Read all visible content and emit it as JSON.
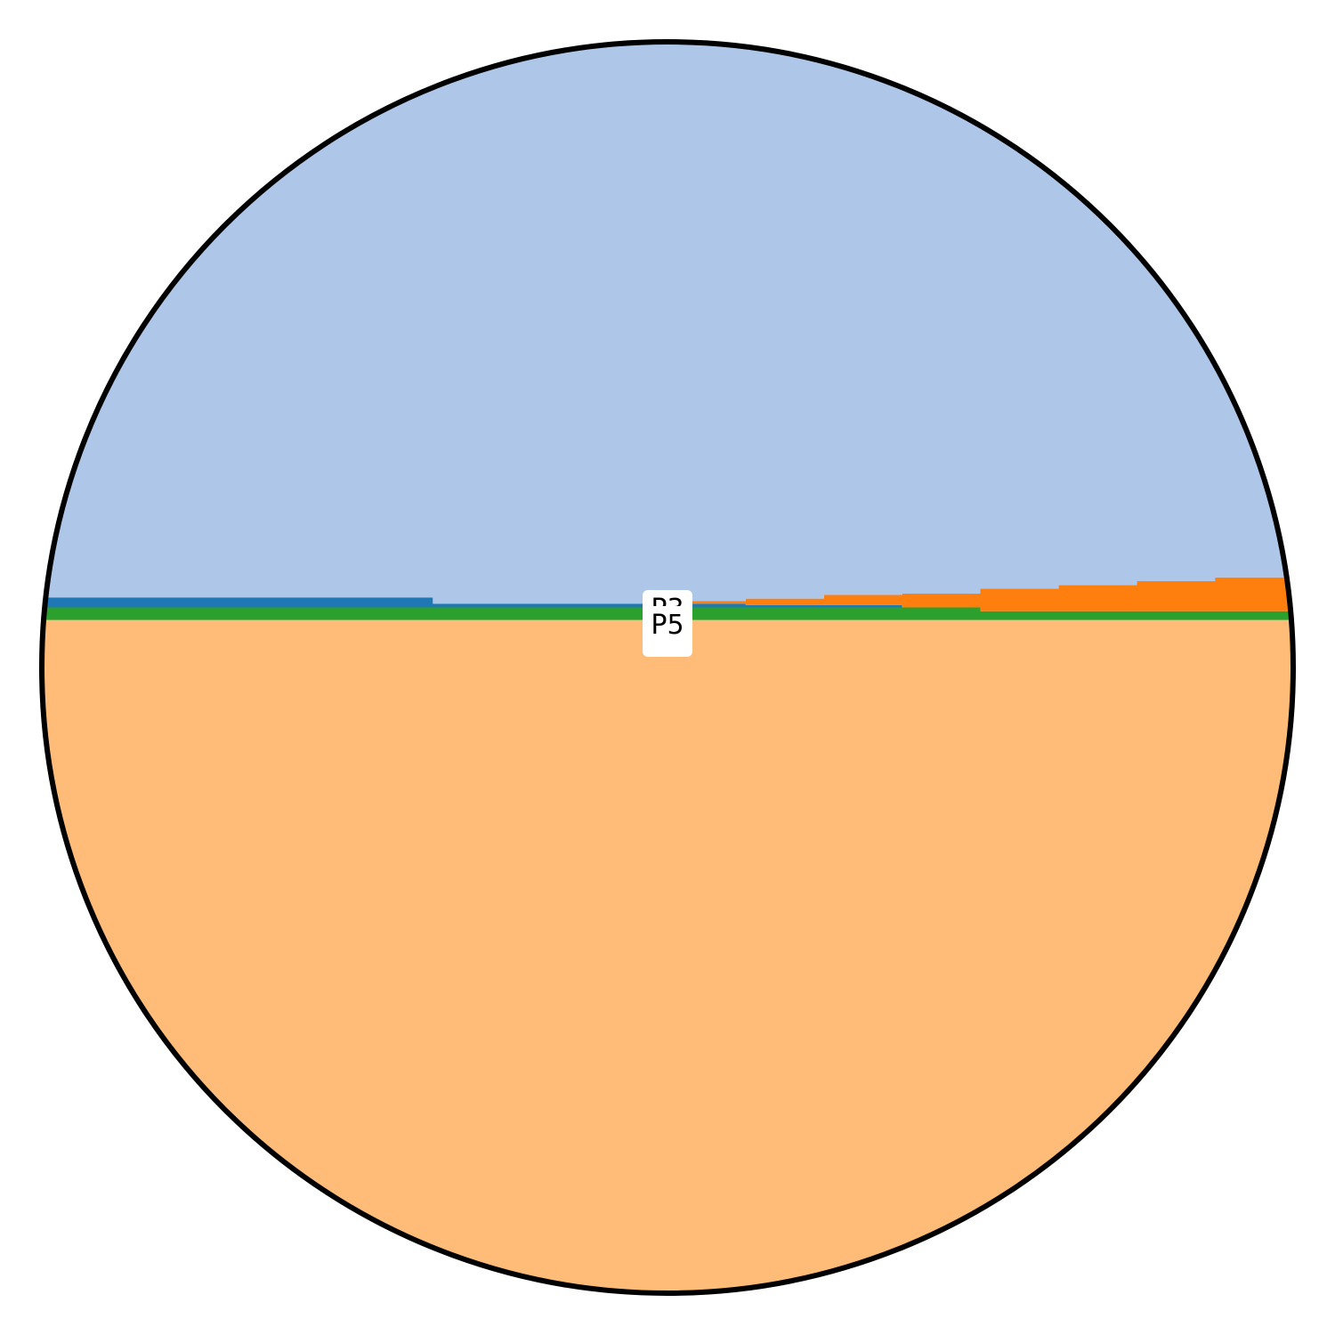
{
  "chart_data": {
    "type": "area",
    "note_shape": "circular plot area",
    "title": "",
    "xlabel": "",
    "ylabel": "",
    "axes_visible": false,
    "grid": false,
    "legend": "none",
    "x": [
      0,
      1,
      2,
      3,
      4,
      5,
      6,
      7,
      8,
      9,
      10,
      11,
      12,
      13,
      14,
      15,
      16
    ],
    "xlim": [
      0,
      16
    ],
    "ylim": [
      0,
      100
    ],
    "series": [
      {
        "color": "#ffbb78",
        "values": [
          53.8,
          53.8,
          53.8,
          53.8,
          53.8,
          53.8,
          53.8,
          53.8,
          53.8,
          53.8,
          53.8,
          53.8,
          53.8,
          53.8,
          53.8,
          53.8,
          53.8
        ]
      },
      {
        "color": "#2ca02c",
        "values": [
          1.0,
          1.0,
          1.0,
          1.0,
          1.0,
          1.0,
          1.0,
          1.0,
          1.0,
          1.0,
          1.0,
          1.0,
          0.7,
          0.7,
          0.7,
          0.7,
          0.7
        ]
      },
      {
        "color": "#1f77b4",
        "values": [
          0.8,
          0.8,
          0.8,
          0.8,
          0.8,
          0.3,
          0.3,
          0.3,
          0.3,
          0.2,
          0.2,
          0.0,
          0.0,
          0.0,
          0.0,
          0.0,
          0.0
        ]
      },
      {
        "color": "#ff7f0e",
        "values": [
          0.0,
          0.0,
          0.0,
          0.0,
          0.0,
          0.0,
          0.0,
          0.0,
          0.2,
          0.5,
          0.8,
          1.1,
          1.8,
          2.1,
          2.4,
          2.7,
          3.0
        ]
      },
      {
        "color": "#aec7e8",
        "values": [
          44.4,
          44.4,
          44.4,
          44.4,
          44.4,
          44.9,
          44.9,
          44.9,
          44.7,
          44.5,
          44.2,
          44.1,
          43.7,
          43.4,
          43.1,
          42.8,
          42.5
        ]
      }
    ],
    "annotations": [
      "P3",
      "P5"
    ]
  }
}
